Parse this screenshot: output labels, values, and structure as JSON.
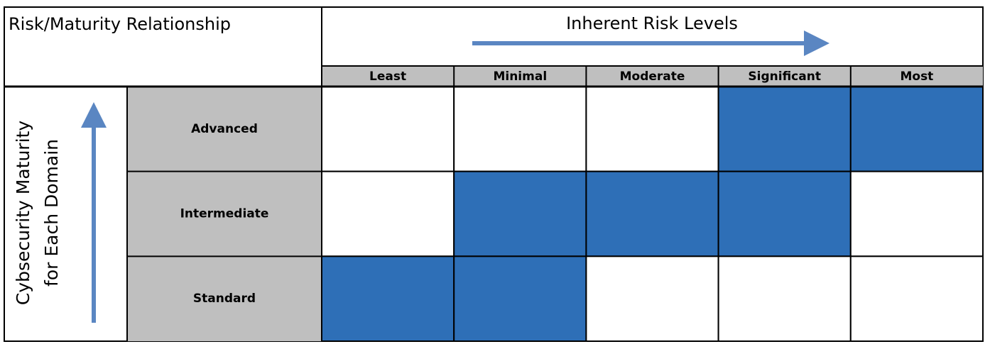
{
  "title": "Risk/Maturity Relationship",
  "column_header": "Inherent Risk Levels",
  "row_header": [
    "Cybsecurity Maturity",
    "for Each Domain"
  ],
  "columns": [
    "Least",
    "Minimal",
    "Moderate",
    "Significant",
    "Most"
  ],
  "rows": [
    {
      "label": "Advanced",
      "filled": [
        false,
        false,
        false,
        true,
        true
      ]
    },
    {
      "label": "Intermediate",
      "filled": [
        false,
        true,
        true,
        true,
        false
      ]
    },
    {
      "label": "Standard",
      "filled": [
        true,
        true,
        false,
        false,
        false
      ]
    }
  ],
  "fill_color": "#2e6fb7"
}
